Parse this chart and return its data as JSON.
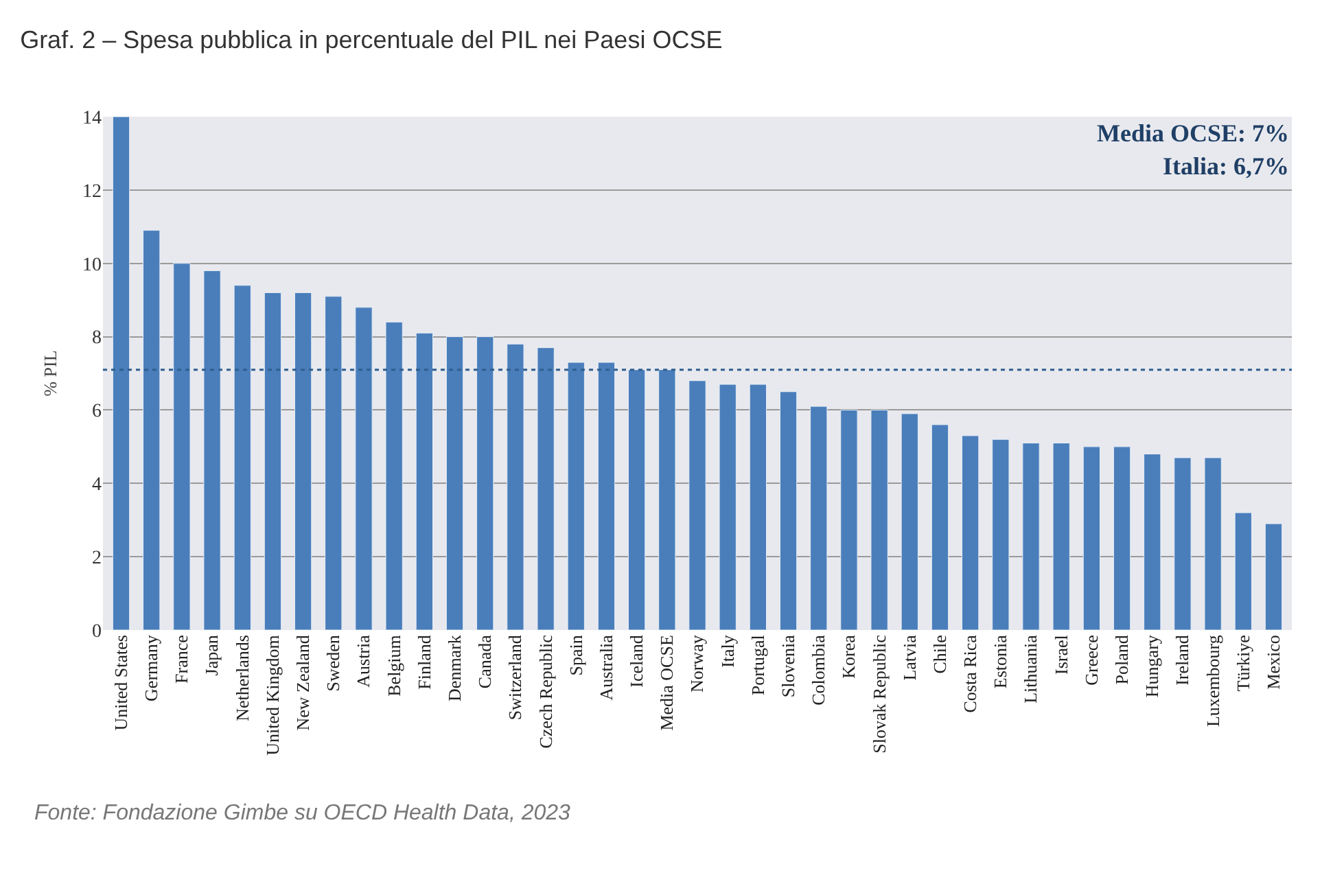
{
  "chart_data": {
    "type": "bar",
    "title": "Graf. 2 – Spesa pubblica in percentuale del PIL nei Paesi OCSE",
    "ylabel": "% PIL",
    "categories": [
      "United States",
      "Germany",
      "France",
      "Japan",
      "Netherlands",
      "United Kingdom",
      "New Zealand",
      "Sweden",
      "Austria",
      "Belgium",
      "Finland",
      "Denmark",
      "Canada",
      "Switzerland",
      "Czech Republic",
      "Spain",
      "Australia",
      "Iceland",
      "Media OCSE",
      "Norway",
      "Italy",
      "Portugal",
      "Slovenia",
      "Colombia",
      "Korea",
      "Slovak Republic",
      "Latvia",
      "Chile",
      "Costa Rica",
      "Estonia",
      "Lithuania",
      "Israel",
      "Greece",
      "Poland",
      "Hungary",
      "Ireland",
      "Luxembourg",
      "Türkiye",
      "Mexico"
    ],
    "values": [
      14.0,
      10.9,
      10.0,
      9.8,
      9.4,
      9.2,
      9.2,
      9.1,
      8.8,
      8.4,
      8.1,
      8.0,
      8.0,
      7.8,
      7.7,
      7.3,
      7.3,
      7.1,
      7.1,
      6.8,
      6.7,
      6.7,
      6.5,
      6.1,
      6.0,
      6.0,
      5.9,
      5.6,
      5.3,
      5.2,
      5.1,
      5.1,
      5.0,
      5.0,
      4.8,
      4.7,
      4.7,
      3.2,
      2.9
    ],
    "color": "#4a7ebb",
    "ylim": [
      0,
      14
    ],
    "yticks": [
      0,
      2,
      4,
      6,
      8,
      10,
      12,
      14
    ],
    "grid": "y",
    "ref_lines": [
      {
        "axis": "y",
        "value": 7.1,
        "color": "#2f5f8f",
        "line_style": "dotted"
      }
    ],
    "annotations": [
      "Media OCSE: 7%",
      "Italia: 6,7%",
      "Fonte: Fondazione Gimbe su OECD Health Data, 2023"
    ]
  }
}
